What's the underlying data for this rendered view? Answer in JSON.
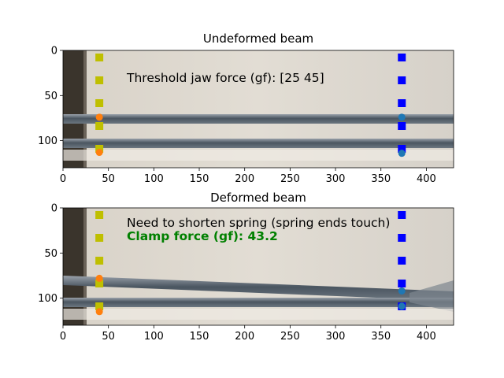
{
  "chart_data": [
    {
      "type": "scatter",
      "title": "Undeformed beam",
      "xlim": [
        0,
        430
      ],
      "ylim": [
        0,
        130
      ],
      "y_inverted": true,
      "xticks": [
        0,
        50,
        100,
        150,
        200,
        250,
        300,
        350,
        400
      ],
      "yticks": [
        0,
        50,
        100
      ],
      "background": "photo of beam clamp",
      "annotations": [
        {
          "text": "Threshold jaw force (gf): [25 45]",
          "color": "#000000",
          "bold": false
        }
      ],
      "dashed_lines": [
        {
          "x": 40,
          "color": "#bfbf00"
        },
        {
          "x": 373,
          "color": "#0000ff"
        }
      ],
      "markers": [
        {
          "x": 40,
          "y": 74,
          "color": "#ff7f0e"
        },
        {
          "x": 40,
          "y": 113,
          "color": "#ff7f0e"
        },
        {
          "x": 373,
          "y": 74,
          "color": "#1f77b4"
        },
        {
          "x": 373,
          "y": 114,
          "color": "#1f77b4"
        }
      ]
    },
    {
      "type": "scatter",
      "title": "Deformed beam",
      "xlim": [
        0,
        430
      ],
      "ylim": [
        0,
        130
      ],
      "y_inverted": true,
      "xticks": [
        0,
        50,
        100,
        150,
        200,
        250,
        300,
        350,
        400
      ],
      "yticks": [
        0,
        50,
        100
      ],
      "background": "photo of beam clamp",
      "annotations": [
        {
          "text": "Need to shorten spring (spring ends touch)",
          "color": "#000000",
          "bold": false
        },
        {
          "text": "Clamp force (gf): 43.2",
          "color": "#008000",
          "bold": true
        }
      ],
      "dashed_lines": [
        {
          "x": 40,
          "color": "#bfbf00"
        },
        {
          "x": 373,
          "color": "#0000ff"
        }
      ],
      "markers": [
        {
          "x": 40,
          "y": 78,
          "color": "#ff7f0e"
        },
        {
          "x": 40,
          "y": 115,
          "color": "#ff7f0e"
        },
        {
          "x": 373,
          "y": 92,
          "color": "#1f77b4"
        },
        {
          "x": 373,
          "y": 109,
          "color": "#1f77b4"
        }
      ]
    }
  ]
}
